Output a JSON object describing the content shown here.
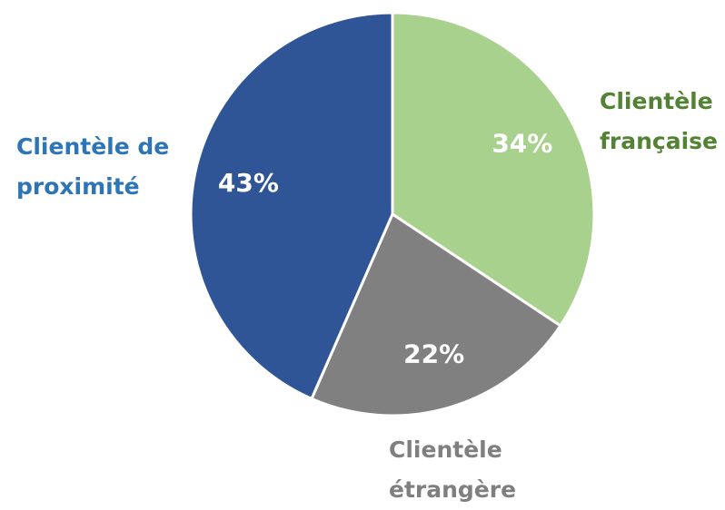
{
  "chart_data": {
    "type": "pie",
    "categories": [
      "Clientèle française",
      "Clientèle étrangère",
      "Clientèle de proximité"
    ],
    "values": [
      34,
      22,
      43
    ],
    "value_labels": [
      "34%",
      "22%",
      "43%"
    ],
    "colors": [
      "#a9d18e",
      "#808080",
      "#2f5597"
    ],
    "label_colors": [
      "#548235",
      "#7f7f7f",
      "#2e75b6"
    ]
  }
}
